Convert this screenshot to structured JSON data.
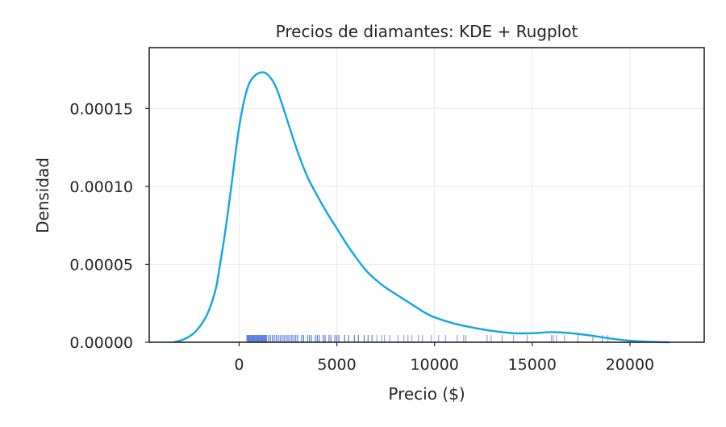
{
  "chart_data": {
    "type": "line",
    "title": "Precios de diamantes: KDE + Rugplot",
    "xlabel": "Precio ($)",
    "ylabel": "Densidad",
    "xlim": [
      -4600,
      23800
    ],
    "ylim": [
      0,
      0.000189
    ],
    "grid": true,
    "x_ticks": [
      0,
      5000,
      10000,
      15000,
      20000
    ],
    "x_tick_labels": [
      "0",
      "5000",
      "10000",
      "15000",
      "20000"
    ],
    "y_ticks": [
      0,
      5e-05,
      0.0001,
      0.00015
    ],
    "y_tick_labels": [
      "0.00000",
      "0.00005",
      "0.00010",
      "0.00015"
    ],
    "colors": {
      "kde": "#12a4e6",
      "rug": "#1f4fd8"
    },
    "series": [
      {
        "kind": "kde",
        "x": [
          -3350,
          -2800,
          -2300,
          -1800,
          -1500,
          -1200,
          -1000,
          -700,
          -400,
          0,
          400,
          800,
          1300,
          1700,
          2000,
          2500,
          3000,
          3500,
          4000,
          4500,
          5000,
          5500,
          6000,
          6500,
          7000,
          7500,
          8000,
          8500,
          9000,
          9500,
          10000,
          11000,
          12000,
          13000,
          14000,
          15000,
          16000,
          17000,
          18000,
          19000,
          20000,
          21000,
          22000
        ],
        "y": [
          0,
          2e-06,
          6e-06,
          1.4e-05,
          2.2e-05,
          3.4e-05,
          4.8e-05,
          7.2e-05,
          0.0001,
          0.000138,
          0.000162,
          0.000171,
          0.000173,
          0.000168,
          0.00016,
          0.000141,
          0.000122,
          0.000106,
          9.4e-05,
          8.3e-05,
          7.3e-05,
          6.3e-05,
          5.4e-05,
          4.6e-05,
          4e-05,
          3.5e-05,
          3.1e-05,
          2.7e-05,
          2.3e-05,
          1.9e-05,
          1.6e-05,
          1.2e-05,
          9.3e-06,
          7.2e-06,
          5.8e-06,
          5.8e-06,
          6.5e-06,
          5.8e-06,
          4.3e-06,
          2.4e-06,
          1e-06,
          3e-07,
          0
        ]
      },
      {
        "kind": "rug",
        "x": [
          400,
          450,
          500,
          550,
          600,
          650,
          700,
          750,
          800,
          850,
          900,
          950,
          1000,
          1050,
          1100,
          1150,
          1200,
          1250,
          1300,
          1350,
          1400,
          1500,
          1600,
          1700,
          1800,
          1900,
          2000,
          2100,
          2200,
          2300,
          2400,
          2500,
          2600,
          2700,
          2800,
          2900,
          3000,
          3200,
          3300,
          3500,
          3600,
          3700,
          3900,
          4000,
          4100,
          4300,
          4400,
          4600,
          4700,
          4900,
          5000,
          5100,
          5400,
          5600,
          5900,
          6100,
          6400,
          6600,
          6800,
          7050,
          7300,
          7440,
          7710,
          8130,
          8430,
          8640,
          8840,
          9180,
          9380,
          9840,
          10210,
          10560,
          11160,
          11490,
          11600,
          12690,
          12900,
          13460,
          14040,
          14740,
          15980,
          16070,
          16240,
          16650,
          17340,
          18100,
          18580,
          18870
        ]
      }
    ]
  }
}
